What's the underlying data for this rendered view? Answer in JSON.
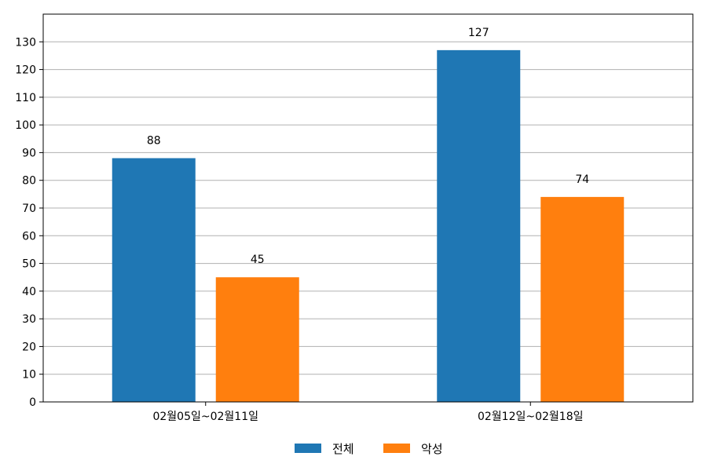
{
  "chart_data": {
    "type": "bar",
    "title": "",
    "xlabel": "",
    "ylabel": "",
    "categories": [
      "02월05일~02월11일",
      "02월12일~02월18일"
    ],
    "series": [
      {
        "name": "전체",
        "color": "#1f77b4",
        "values": [
          88,
          127
        ]
      },
      {
        "name": "악성",
        "color": "#ff7f0e",
        "values": [
          45,
          74
        ]
      }
    ],
    "ylim": [
      0,
      140
    ],
    "yticks": [
      0,
      10,
      20,
      30,
      40,
      50,
      60,
      70,
      80,
      90,
      100,
      110,
      120,
      130
    ],
    "grid": "horizontal",
    "legend_position": "bottom-center",
    "data_labels": true
  }
}
